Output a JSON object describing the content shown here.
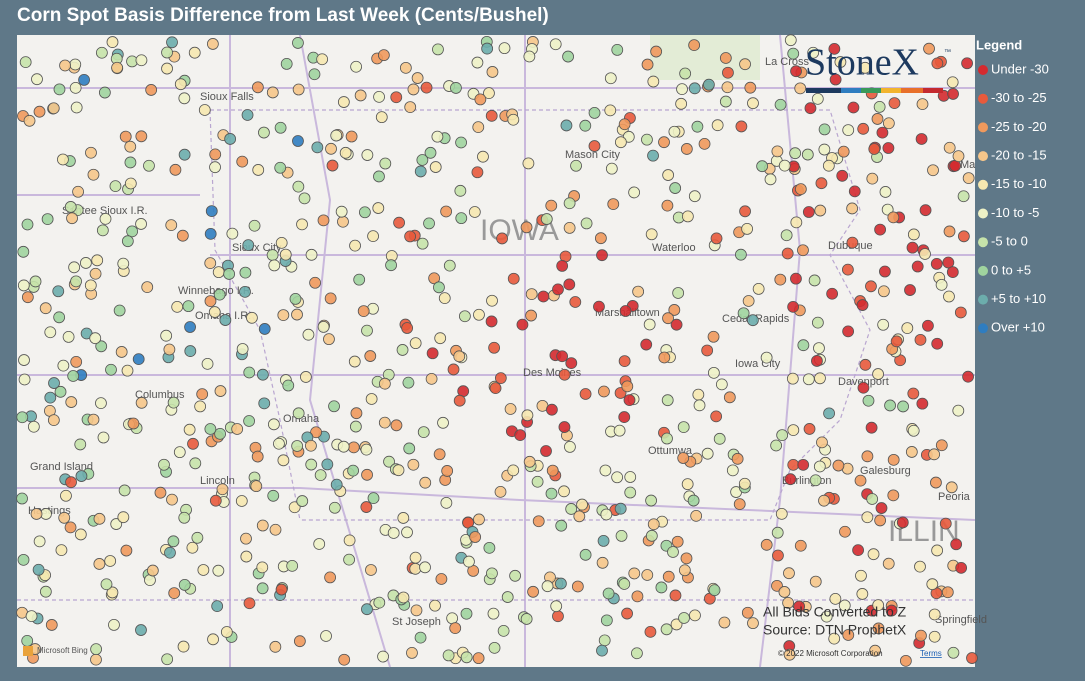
{
  "header": {
    "title": "Corn Spot Basis Difference from Last Week (Cents/Bushel)"
  },
  "legend": {
    "title": "Legend",
    "items": [
      {
        "label": "Under -30",
        "color": "#d42a2f"
      },
      {
        "label": "-30 to -25",
        "color": "#e85a3c"
      },
      {
        "label": "-25 to -20",
        "color": "#f0995c"
      },
      {
        "label": "-20 to -15",
        "color": "#f6c68a"
      },
      {
        "label": "-15 to -10",
        "color": "#f6e8b0"
      },
      {
        "label": "-10 to -5",
        "color": "#eef2c6"
      },
      {
        "label": "-5 to 0",
        "color": "#c6e3aa"
      },
      {
        "label": "0 to +5",
        "color": "#a0d49e"
      },
      {
        "label": "+5 to +10",
        "color": "#6cadac"
      },
      {
        "label": "Over +10",
        "color": "#2f7dc0"
      }
    ]
  },
  "logo": {
    "text": "StoneX",
    "mark": "™"
  },
  "map": {
    "labels": [
      "Sioux Falls",
      "Mason City",
      "IOWA",
      "Waterloo",
      "Dubuque",
      "Santee Sioux I.R.",
      "Sioux City",
      "Winnebago I.R.",
      "Omaha I.R.",
      "Marshalltown",
      "Cedar Rapids",
      "Iowa City",
      "Davenport",
      "Columbus",
      "Omaha",
      "Des Moines",
      "Ottumwa",
      "Burlington",
      "Galesburg",
      "Grand Island",
      "Lincoln",
      "Hastings",
      "St Joseph",
      "Peoria",
      "Springfield",
      "ILLIN",
      "La Cross",
      "Ma"
    ]
  },
  "footer": {
    "note": "All Bids Converted to Z",
    "source": "Source: DTN ProphetX",
    "bing": "Microsoft Bing",
    "copyright": "© 2022 Microsoft Corporation",
    "terms": "Terms"
  }
}
